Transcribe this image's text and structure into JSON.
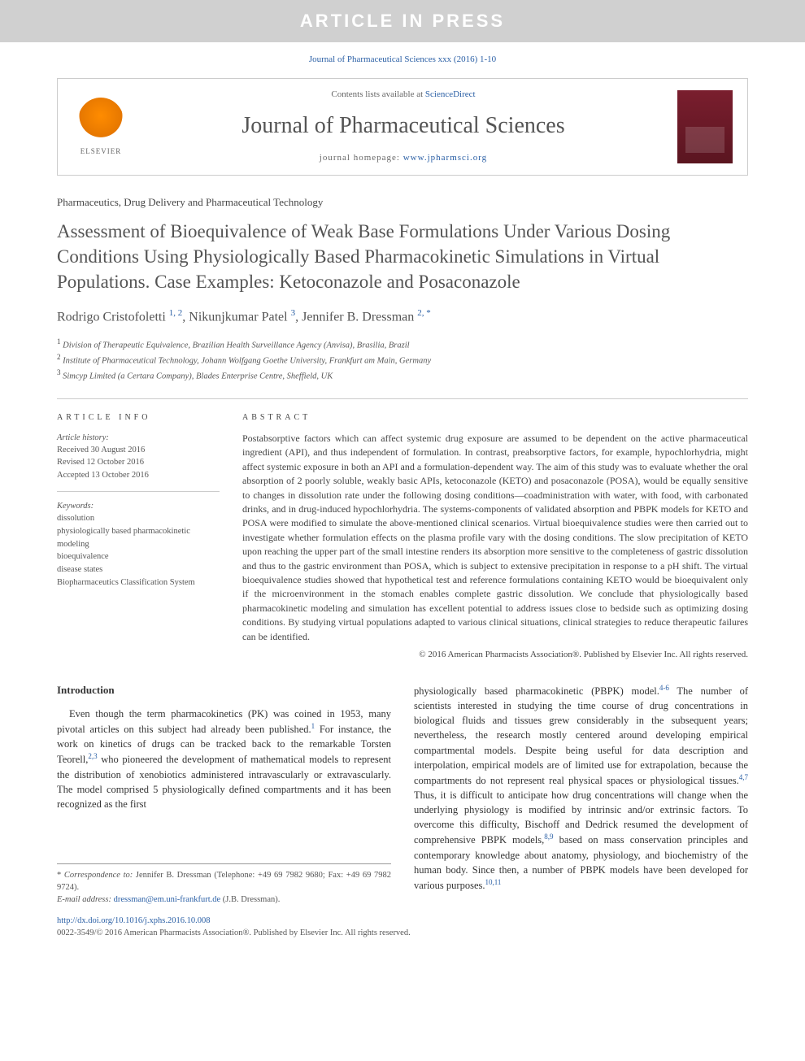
{
  "banner": {
    "text": "ARTICLE IN PRESS"
  },
  "citation": "Journal of Pharmaceutical Sciences xxx (2016) 1-10",
  "header": {
    "contents_prefix": "Contents lists available at ",
    "contents_link": "ScienceDirect",
    "journal_name": "Journal of Pharmaceutical Sciences",
    "homepage_prefix": "journal homepage: ",
    "homepage_url": "www.jpharmsci.org",
    "elsevier_label": "ELSEVIER"
  },
  "section_label": "Pharmaceutics, Drug Delivery and Pharmaceutical Technology",
  "title": "Assessment of Bioequivalence of Weak Base Formulations Under Various Dosing Conditions Using Physiologically Based Pharmacokinetic Simulations in Virtual Populations. Case Examples: Ketoconazole and Posaconazole",
  "authors_html": "Rodrigo Cristofoletti <sup>1, 2</sup>, Nikunjkumar Patel <sup>3</sup>, Jennifer B. Dressman <sup>2, *</sup>",
  "affiliations": [
    {
      "num": "1",
      "text": "Division of Therapeutic Equivalence, Brazilian Health Surveillance Agency (Anvisa), Brasilia, Brazil"
    },
    {
      "num": "2",
      "text": "Institute of Pharmaceutical Technology, Johann Wolfgang Goethe University, Frankfurt am Main, Germany"
    },
    {
      "num": "3",
      "text": "Simcyp Limited (a Certara Company), Blades Enterprise Centre, Sheffield, UK"
    }
  ],
  "article_info": {
    "heading": "ARTICLE INFO",
    "history_label": "Article history:",
    "received": "Received 30 August 2016",
    "revised": "Revised 12 October 2016",
    "accepted": "Accepted 13 October 2016",
    "keywords_label": "Keywords:",
    "keywords": [
      "dissolution",
      "physiologically based pharmacokinetic modeling",
      "bioequivalence",
      "disease states",
      "Biopharmaceutics Classification System"
    ]
  },
  "abstract": {
    "heading": "ABSTRACT",
    "text": "Postabsorptive factors which can affect systemic drug exposure are assumed to be dependent on the active pharmaceutical ingredient (API), and thus independent of formulation. In contrast, preabsorptive factors, for example, hypochlorhydria, might affect systemic exposure in both an API and a formulation-dependent way. The aim of this study was to evaluate whether the oral absorption of 2 poorly soluble, weakly basic APIs, ketoconazole (KETO) and posaconazole (POSA), would be equally sensitive to changes in dissolution rate under the following dosing conditions—coadministration with water, with food, with carbonated drinks, and in drug-induced hypochlorhydria. The systems-components of validated absorption and PBPK models for KETO and POSA were modified to simulate the above-mentioned clinical scenarios. Virtual bioequivalence studies were then carried out to investigate whether formulation effects on the plasma profile vary with the dosing conditions. The slow precipitation of KETO upon reaching the upper part of the small intestine renders its absorption more sensitive to the completeness of gastric dissolution and thus to the gastric environment than POSA, which is subject to extensive precipitation in response to a pH shift. The virtual bioequivalence studies showed that hypothetical test and reference formulations containing KETO would be bioequivalent only if the microenvironment in the stomach enables complete gastric dissolution. We conclude that physiologically based pharmacokinetic modeling and simulation has excellent potential to address issues close to bedside such as optimizing dosing conditions. By studying virtual populations adapted to various clinical situations, clinical strategies to reduce therapeutic failures can be identified.",
    "copyright": "© 2016 American Pharmacists Association®. Published by Elsevier Inc. All rights reserved."
  },
  "introduction": {
    "heading": "Introduction",
    "para1_pre": "Even though the term pharmacokinetics (PK) was coined in 1953, many pivotal articles on this subject had already been published.",
    "para1_sup1": "1",
    "para1_mid": " For instance, the work on kinetics of drugs can be tracked back to the remarkable Torsten Teorell,",
    "para1_sup2": "2,3",
    "para1_post": " who pioneered the development of mathematical models to represent the distribution of xenobiotics administered intravascularly or extravascularly. The model comprised 5 physiologically defined compartments and it has been recognized as the first",
    "para2_pre": "physiologically based pharmacokinetic (PBPK) model.",
    "para2_sup1": "4-6",
    "para2_mid": " The number of scientists interested in studying the time course of drug concentrations in biological fluids and tissues grew considerably in the subsequent years; nevertheless, the research mostly centered around developing empirical compartmental models. Despite being useful for data description and interpolation, empirical models are of limited use for extrapolation, because the compartments do not represent real physical spaces or physiological tissues.",
    "para2_sup2": "4,7",
    "para2_mid2": " Thus, it is difficult to anticipate how drug concentrations will change when the underlying physiology is modified by intrinsic and/or extrinsic factors. To overcome this difficulty, Bischoff and Dedrick resumed the development of comprehensive PBPK models,",
    "para2_sup3": "8,9",
    "para2_mid3": " based on mass conservation principles and contemporary knowledge about anatomy, physiology, and biochemistry of the human body. Since then, a number of PBPK models have been developed for various purposes.",
    "para2_sup4": "10,11"
  },
  "correspondence": {
    "star": "*",
    "label": "Correspondence to:",
    "text": " Jennifer B. Dressman (Telephone: +49 69 7982 9680; Fax: +49 69 7982 9724).",
    "email_label": "E-mail address:",
    "email": "dressman@em.uni-frankfurt.de",
    "email_suffix": " (J.B. Dressman)."
  },
  "footer": {
    "doi": "http://dx.doi.org/10.1016/j.xphs.2016.10.008",
    "issn_line": "0022-3549/© 2016 American Pharmacists Association®. Published by Elsevier Inc. All rights reserved."
  },
  "colors": {
    "link": "#2a5fa5",
    "banner_bg": "#d0d0d0",
    "heading_gray": "#545454",
    "cover_bg": "#7a1e2e"
  }
}
